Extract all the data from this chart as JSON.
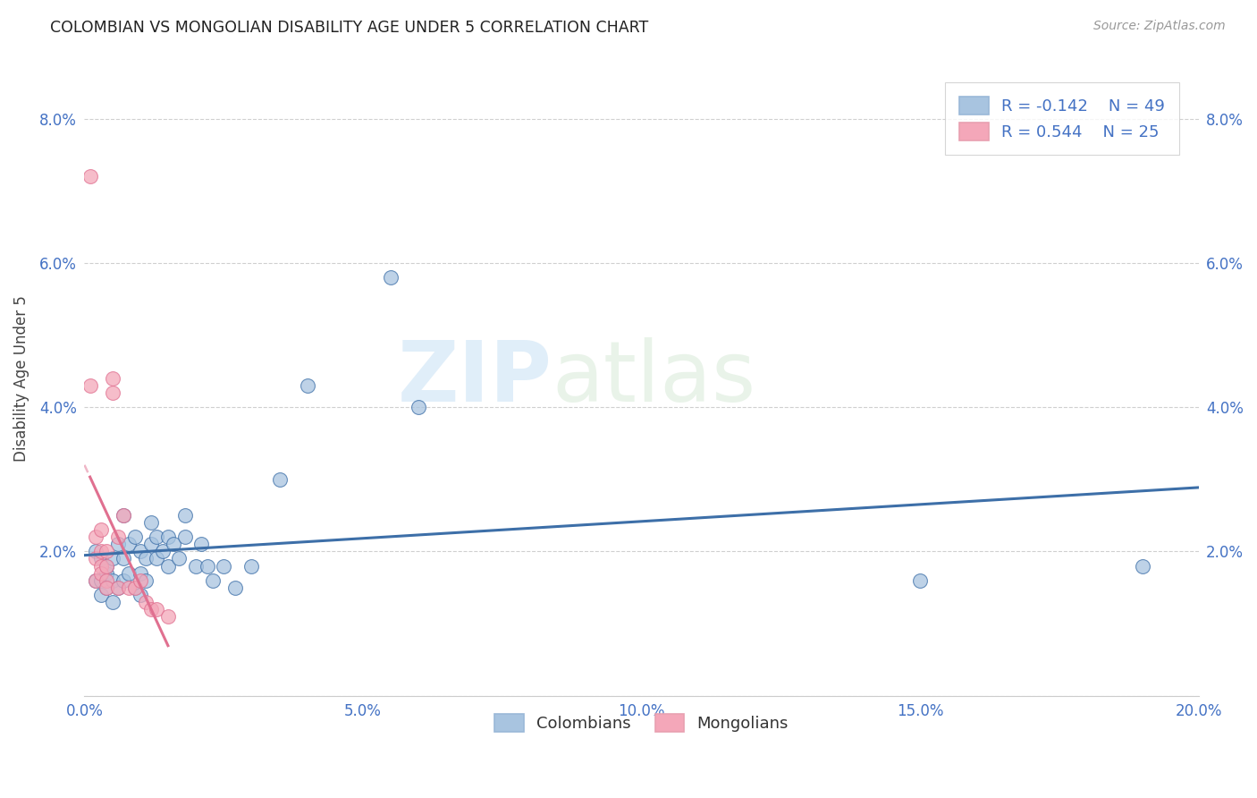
{
  "title": "COLOMBIAN VS MONGOLIAN DISABILITY AGE UNDER 5 CORRELATION CHART",
  "source": "Source: ZipAtlas.com",
  "ylabel": "Disability Age Under 5",
  "xlim": [
    0.0,
    0.2
  ],
  "ylim": [
    0.0,
    0.088
  ],
  "xticks": [
    0.0,
    0.05,
    0.1,
    0.15,
    0.2
  ],
  "yticks": [
    0.0,
    0.02,
    0.04,
    0.06,
    0.08
  ],
  "xtick_labels": [
    "0.0%",
    "5.0%",
    "10.0%",
    "15.0%",
    "20.0%"
  ],
  "ytick_labels": [
    "",
    "2.0%",
    "4.0%",
    "6.0%",
    "8.0%"
  ],
  "colombians_R": -0.142,
  "colombians_N": 49,
  "mongolians_R": 0.544,
  "mongolians_N": 25,
  "col_color": "#a8c4e0",
  "mon_color": "#f4a7b9",
  "col_line_color": "#3d6fa8",
  "mon_line_color": "#e07090",
  "legend_label_col": "Colombians",
  "legend_label_mon": "Mongolians",
  "watermark_zip": "ZIP",
  "watermark_atlas": "atlas",
  "colombians_x": [
    0.002,
    0.002,
    0.003,
    0.003,
    0.003,
    0.004,
    0.004,
    0.004,
    0.005,
    0.005,
    0.005,
    0.006,
    0.006,
    0.007,
    0.007,
    0.007,
    0.008,
    0.008,
    0.009,
    0.009,
    0.01,
    0.01,
    0.01,
    0.011,
    0.011,
    0.012,
    0.012,
    0.013,
    0.013,
    0.014,
    0.015,
    0.015,
    0.016,
    0.017,
    0.018,
    0.018,
    0.02,
    0.021,
    0.022,
    0.023,
    0.025,
    0.027,
    0.03,
    0.035,
    0.04,
    0.055,
    0.06,
    0.15,
    0.19
  ],
  "colombians_y": [
    0.016,
    0.02,
    0.014,
    0.016,
    0.019,
    0.015,
    0.017,
    0.018,
    0.013,
    0.016,
    0.019,
    0.015,
    0.021,
    0.016,
    0.019,
    0.025,
    0.017,
    0.021,
    0.015,
    0.022,
    0.014,
    0.017,
    0.02,
    0.016,
    0.019,
    0.021,
    0.024,
    0.019,
    0.022,
    0.02,
    0.018,
    0.022,
    0.021,
    0.019,
    0.022,
    0.025,
    0.018,
    0.021,
    0.018,
    0.016,
    0.018,
    0.015,
    0.018,
    0.03,
    0.043,
    0.058,
    0.04,
    0.016,
    0.018
  ],
  "mongolians_x": [
    0.001,
    0.001,
    0.002,
    0.002,
    0.002,
    0.003,
    0.003,
    0.003,
    0.003,
    0.004,
    0.004,
    0.004,
    0.004,
    0.005,
    0.005,
    0.006,
    0.006,
    0.007,
    0.008,
    0.009,
    0.01,
    0.011,
    0.012,
    0.013,
    0.015
  ],
  "mongolians_y": [
    0.072,
    0.043,
    0.022,
    0.019,
    0.016,
    0.02,
    0.018,
    0.023,
    0.017,
    0.018,
    0.02,
    0.016,
    0.015,
    0.042,
    0.044,
    0.015,
    0.022,
    0.025,
    0.015,
    0.015,
    0.016,
    0.013,
    0.012,
    0.012,
    0.011
  ]
}
